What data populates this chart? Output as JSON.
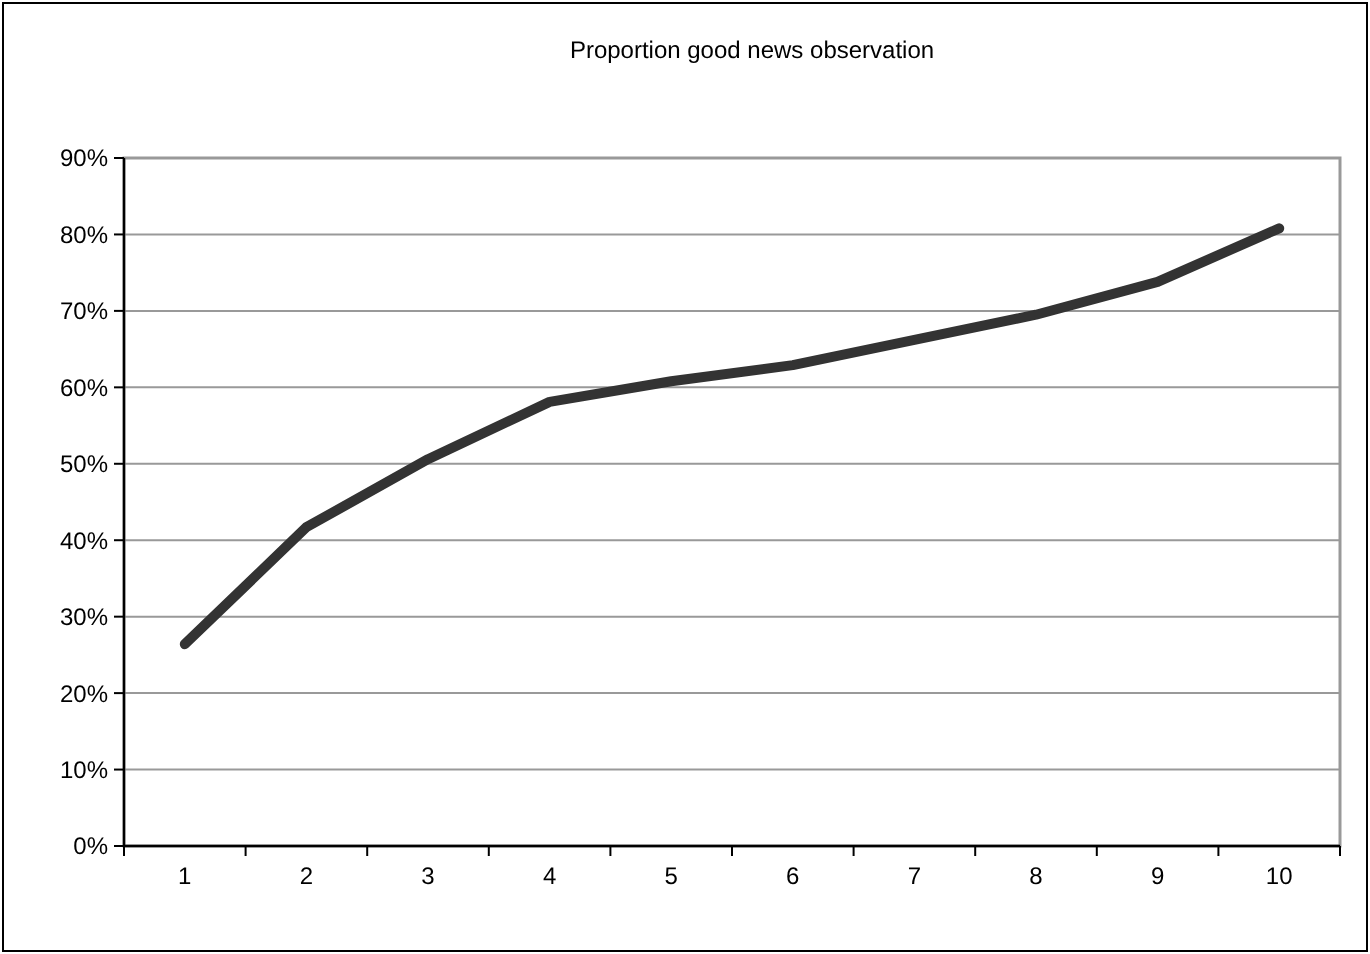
{
  "chart_data": {
    "type": "line",
    "title": "Proportion good news observation",
    "categories": [
      "1",
      "2",
      "3",
      "4",
      "5",
      "6",
      "7",
      "8",
      "9",
      "10"
    ],
    "series": [
      {
        "color": "#333333",
        "values": [
          26.4,
          41.7,
          50.6,
          58.1,
          60.8,
          62.9,
          66.2,
          69.5,
          73.8,
          80.8
        ]
      }
    ],
    "ylim": [
      0,
      90
    ],
    "yticks": [
      {
        "value": 0,
        "label": "0%"
      },
      {
        "value": 10,
        "label": "10%"
      },
      {
        "value": 20,
        "label": "20%"
      },
      {
        "value": 30,
        "label": "30%"
      },
      {
        "value": 40,
        "label": "40%"
      },
      {
        "value": 50,
        "label": "50%"
      },
      {
        "value": 60,
        "label": "60%"
      },
      {
        "value": 70,
        "label": "70%"
      },
      {
        "value": 80,
        "label": "80%"
      },
      {
        "value": 90,
        "label": "90%"
      }
    ],
    "grid": "y",
    "marker": "none",
    "line_style": "solid"
  }
}
